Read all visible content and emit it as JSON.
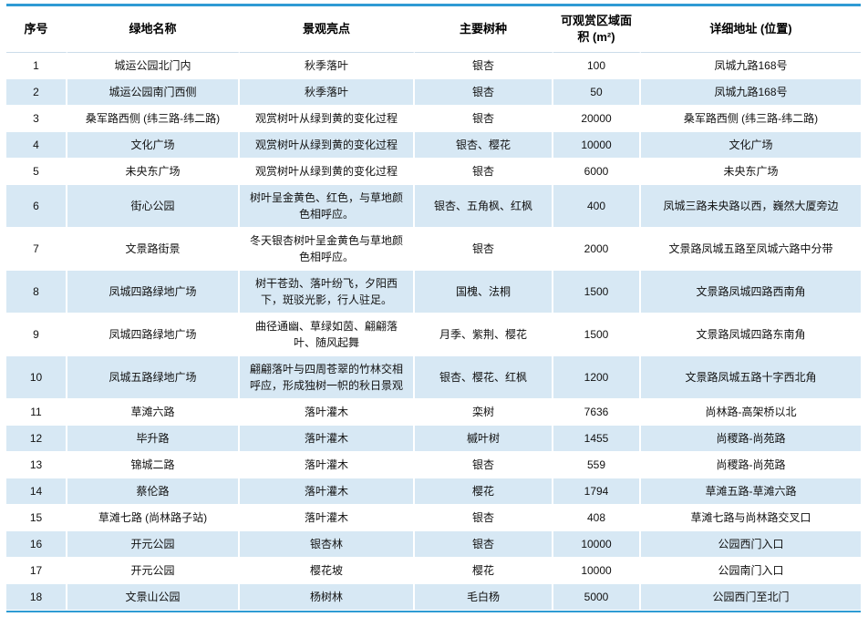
{
  "colors": {
    "accent_border_blue": "#2f9bd4",
    "alt_row_blue": "#d7e8f4",
    "header_divider": "#ccdcea",
    "text": "#111111"
  },
  "table": {
    "headers": [
      "序号",
      "绿地名称",
      "景观亮点",
      "主要树种",
      "可观赏区域面积 (m²)",
      "详细地址 (位置)"
    ],
    "rows": [
      [
        "1",
        "城运公园北门内",
        "秋季落叶",
        "银杏",
        "100",
        "凤城九路168号"
      ],
      [
        "2",
        "城运公园南门西侧",
        "秋季落叶",
        "银杏",
        "50",
        "凤城九路168号"
      ],
      [
        "3",
        "桑军路西侧 (纬三路-纬二路)",
        "观赏树叶从绿到黄的变化过程",
        "银杏",
        "20000",
        "桑军路西侧 (纬三路-纬二路)"
      ],
      [
        "4",
        "文化广场",
        "观赏树叶从绿到黄的变化过程",
        "银杏、樱花",
        "10000",
        "文化广场"
      ],
      [
        "5",
        "未央东广场",
        "观赏树叶从绿到黄的变化过程",
        "银杏",
        "6000",
        "未央东广场"
      ],
      [
        "6",
        "街心公园",
        "树叶呈金黄色、红色，与草地颜色相呼应。",
        "银杏、五角枫、红枫",
        "400",
        "凤城三路未央路以西，巍然大厦旁边"
      ],
      [
        "7",
        "文景路街景",
        "冬天银杏树叶呈金黄色与草地颜色相呼应。",
        "银杏",
        "2000",
        "文景路凤城五路至凤城六路中分带"
      ],
      [
        "8",
        "凤城四路绿地广场",
        "树干苍劲、落叶纷飞，夕阳西下，斑驳光影，行人驻足。",
        "国槐、法桐",
        "1500",
        "文景路凤城四路西南角"
      ],
      [
        "9",
        "凤城四路绿地广场",
        "曲径通幽、草绿如茵、翩翩落叶、随风起舞",
        "月季、紫荆、樱花",
        "1500",
        "文景路凤城四路东南角"
      ],
      [
        "10",
        "凤城五路绿地广场",
        "翩翩落叶与四周苍翠的竹林交相呼应，形成独树一帜的秋日景观",
        "银杏、樱花、红枫",
        "1200",
        "文景路凤城五路十字西北角"
      ],
      [
        "11",
        "草滩六路",
        "落叶灌木",
        "栾树",
        "7636",
        "尚林路-高架桥以北"
      ],
      [
        "12",
        "毕升路",
        "落叶灌木",
        "槭叶树",
        "1455",
        "尚稷路-尚苑路"
      ],
      [
        "13",
        "锦城二路",
        "落叶灌木",
        "银杏",
        "559",
        "尚稷路-尚苑路"
      ],
      [
        "14",
        "蔡伦路",
        "落叶灌木",
        "樱花",
        "1794",
        "草滩五路-草滩六路"
      ],
      [
        "15",
        "草滩七路 (尚林路子站)",
        "落叶灌木",
        "银杏",
        "408",
        "草滩七路与尚林路交叉口"
      ],
      [
        "16",
        "开元公园",
        "银杏林",
        "银杏",
        "10000",
        "公园西门入口"
      ],
      [
        "17",
        "开元公园",
        "樱花坡",
        "樱花",
        "10000",
        "公园南门入口"
      ],
      [
        "18",
        "文景山公园",
        "杨树林",
        "毛白杨",
        "5000",
        "公园西门至北门"
      ]
    ]
  }
}
